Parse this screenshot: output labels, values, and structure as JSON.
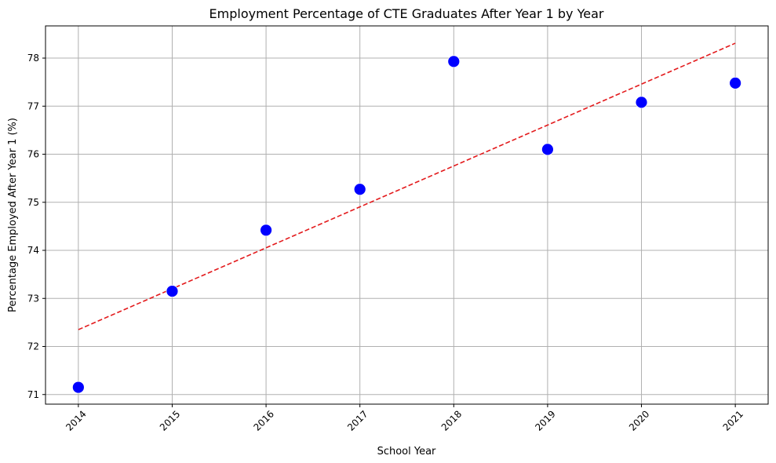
{
  "chart_data": {
    "type": "scatter",
    "title": "Employment Percentage of CTE Graduates After Year 1 by Year",
    "xlabel": "School Year",
    "ylabel": "Percentage Employed After Year 1 (%)",
    "x": [
      2014,
      2015,
      2016,
      2017,
      2018,
      2019,
      2020,
      2021
    ],
    "x_tick_labels": [
      "2014",
      "2015",
      "2016",
      "2017",
      "2018",
      "2019",
      "2020",
      "2021"
    ],
    "y_ticks": [
      71,
      72,
      73,
      74,
      75,
      76,
      77,
      78
    ],
    "y_tick_labels": [
      "71",
      "72",
      "73",
      "74",
      "75",
      "76",
      "77",
      "78"
    ],
    "xlim": [
      2013.65,
      2021.35
    ],
    "ylim": [
      70.8,
      78.67
    ],
    "grid": true,
    "series": [
      {
        "kind": "scatter",
        "color": "#0000ff",
        "edge_color": "#ffffff",
        "values": [
          71.15,
          73.15,
          74.42,
          75.27,
          77.93,
          76.1,
          77.08,
          77.48
        ]
      },
      {
        "kind": "trend-line",
        "color": "#e31a1c",
        "style": "dashed",
        "x": [
          2014,
          2021
        ],
        "values": [
          72.35,
          78.31
        ]
      }
    ]
  }
}
